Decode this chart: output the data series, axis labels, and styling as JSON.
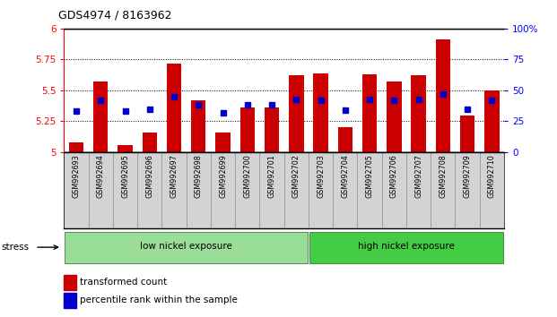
{
  "title": "GDS4974 / 8163962",
  "samples": [
    "GSM992693",
    "GSM992694",
    "GSM992695",
    "GSM992696",
    "GSM992697",
    "GSM992698",
    "GSM992699",
    "GSM992700",
    "GSM992701",
    "GSM992702",
    "GSM992703",
    "GSM992704",
    "GSM992705",
    "GSM992706",
    "GSM992707",
    "GSM992708",
    "GSM992709",
    "GSM992710"
  ],
  "bar_values": [
    5.08,
    5.57,
    5.06,
    5.16,
    5.72,
    5.42,
    5.16,
    5.36,
    5.36,
    5.62,
    5.64,
    5.2,
    5.63,
    5.57,
    5.62,
    5.91,
    5.3,
    5.5
  ],
  "percentile_values": [
    33,
    42,
    33,
    35,
    45,
    38,
    32,
    38,
    38,
    43,
    42,
    34,
    43,
    42,
    43,
    47,
    35,
    42
  ],
  "ylim_left": [
    5.0,
    6.0
  ],
  "ylim_right": [
    0,
    100
  ],
  "bar_color": "#cc0000",
  "dot_color": "#0000cc",
  "low_group_count": 10,
  "low_label": "low nickel exposure",
  "high_label": "high nickel exposure",
  "low_color": "#99dd99",
  "high_color": "#44cc44",
  "stress_label": "stress",
  "legend1": "transformed count",
  "legend2": "percentile rank within the sample",
  "dotted_lines": [
    5.25,
    5.5,
    5.75
  ],
  "ytick_labels_left": [
    "5",
    "5.25",
    "5.5",
    "5.75",
    "6"
  ],
  "ytick_labels_right": [
    "0",
    "25",
    "50",
    "75",
    "100%"
  ]
}
